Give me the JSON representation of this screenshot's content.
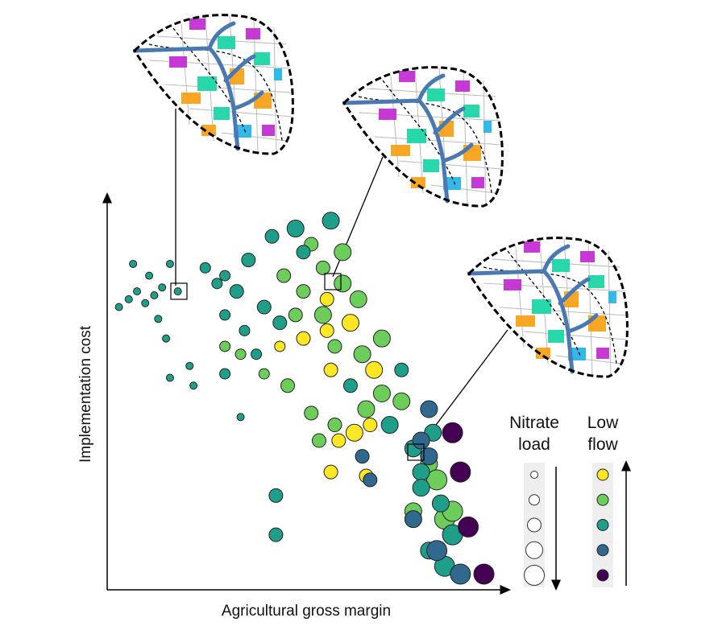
{
  "chart_data": {
    "type": "scatter",
    "x_label": "Agricultural gross margin",
    "y_label": "Implementation cost",
    "xlim": [
      0,
      100
    ],
    "ylim": [
      0,
      100
    ],
    "size_legend_title": "Nitrate load",
    "color_legend_title": "Low flow",
    "size_legend": [
      1,
      2,
      3,
      4,
      5
    ],
    "series": [
      {
        "color": "#fde725",
        "x": [
          50,
          56,
          62,
          68,
          57,
          63,
          67,
          57,
          66,
          59,
          56,
          44
        ],
        "y": [
          64,
          66,
          68,
          56,
          56,
          40,
          42,
          30,
          29,
          38,
          74,
          62
        ],
        "sizes": [
          3,
          3,
          4,
          4,
          3,
          4,
          3,
          3,
          3,
          3,
          3,
          2
        ]
      },
      {
        "color": "#6ccd5a",
        "x": [
          45,
          50,
          55,
          48,
          55,
          60,
          64,
          58,
          65,
          70,
          40,
          46,
          52,
          58,
          66,
          70,
          34,
          30,
          60,
          52,
          75,
          82,
          84,
          86,
          78,
          54,
          88
        ],
        "y": [
          80,
          76,
          82,
          70,
          70,
          78,
          74,
          62,
          60,
          64,
          55,
          52,
          45,
          42,
          46,
          50,
          60,
          62,
          86,
          88,
          48,
          32,
          28,
          18,
          20,
          38,
          20
        ],
        "sizes": [
          3,
          3,
          3,
          3,
          4,
          4,
          4,
          3,
          4,
          4,
          2,
          3,
          3,
          3,
          4,
          4,
          2,
          2,
          4,
          3,
          4,
          4,
          5,
          5,
          4,
          3,
          5
        ]
      },
      {
        "color": "#1f9e89",
        "x": [
          3,
          5.5,
          7.6,
          9.7,
          12,
          14,
          6.6,
          10.7,
          16,
          18,
          13,
          15,
          16,
          21,
          22,
          34,
          25,
          28,
          30,
          33,
          36,
          30,
          40,
          35,
          38,
          44,
          42,
          48,
          50,
          57,
          72,
          78,
          80,
          85,
          88,
          82,
          86,
          80,
          43,
          43,
          30,
          62,
          75,
          83
        ],
        "y": [
          72,
          74,
          76,
          73,
          75,
          77,
          83,
          80,
          83,
          76,
          69,
          64,
          54,
          57,
          52,
          44,
          82,
          78,
          80,
          76,
          84,
          70,
          72,
          66,
          60,
          68,
          90,
          92,
          86,
          94,
          42,
          36,
          30,
          22,
          14,
          10,
          6,
          26,
          24,
          14,
          55,
          52,
          56,
          40
        ],
        "sizes": [
          1,
          1,
          1,
          1,
          1,
          1,
          1,
          1,
          1,
          1,
          1,
          1,
          1,
          1,
          1,
          1,
          2,
          2,
          2,
          3,
          3,
          2,
          3,
          2,
          2,
          3,
          3,
          4,
          3,
          4,
          4,
          4,
          4,
          4,
          5,
          4,
          5,
          4,
          3,
          3,
          2,
          3,
          3,
          4
        ]
      },
      {
        "color": "#31688e",
        "x": [
          80,
          82,
          65,
          67,
          78,
          84,
          90,
          82
        ],
        "y": [
          38,
          34,
          34,
          28,
          18,
          10,
          4,
          46
        ],
        "sizes": [
          4,
          4,
          3,
          3,
          4,
          5,
          5,
          4
        ]
      },
      {
        "color": "#440154",
        "x": [
          88,
          90,
          92,
          96
        ],
        "y": [
          40,
          30,
          16,
          4
        ],
        "sizes": [
          5,
          5,
          5,
          5
        ]
      }
    ]
  }
}
